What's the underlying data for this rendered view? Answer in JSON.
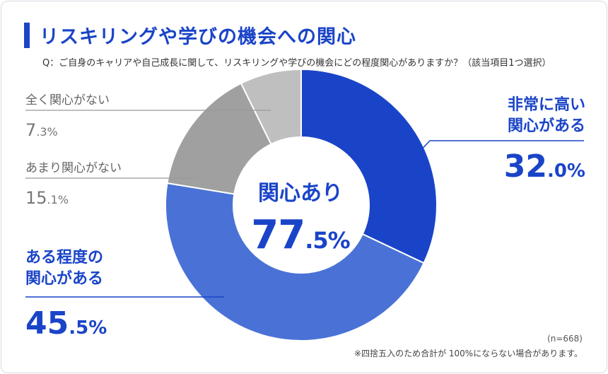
{
  "header": {
    "title": "リスキリングや学びの機会への関心",
    "question": "Q：ご自身のキャリアや自己成長に関して、リスキリングや学びの機会にどの程度関心がありますか？（該当項目1つ選択）"
  },
  "labels": {
    "very_interested": [
      "非常に高い",
      "関心がある"
    ],
    "somewhat_interested": [
      "ある程度の",
      "関心がある"
    ],
    "not_very": "あまり関心がない",
    "not_at_all": "全く関心がない"
  },
  "values_text": {
    "very_interested": {
      "int": "32",
      "dec": ".0%"
    },
    "somewhat_interested": {
      "int": "45",
      "dec": ".5%"
    },
    "not_very": {
      "int": "15",
      "dec": ".1%"
    },
    "not_at_all": {
      "int": "7",
      "dec": ".3%"
    }
  },
  "center": {
    "label": "関心あり",
    "value_int": "77",
    "value_dec": ".5%"
  },
  "notes": {
    "n": "(n=668)",
    "rounding": "※四捨五入のため合計が 100%にならない場合があります。"
  },
  "colors": {
    "accent": "#1a44c8",
    "very_interested": "#1a44c8",
    "somewhat_interested": "#4a72d6",
    "not_very": "#a0a0a0",
    "not_at_all": "#bfbfbf"
  },
  "chart_data": {
    "type": "pie",
    "title": "リスキリングや学びの機会への関心",
    "slices": [
      {
        "label": "非常に高い関心がある",
        "value": 32.0
      },
      {
        "label": "ある程度の関心がある",
        "value": 45.5
      },
      {
        "label": "あまり関心がない",
        "value": 15.1
      },
      {
        "label": "全く関心がない",
        "value": 7.3
      }
    ]
  }
}
